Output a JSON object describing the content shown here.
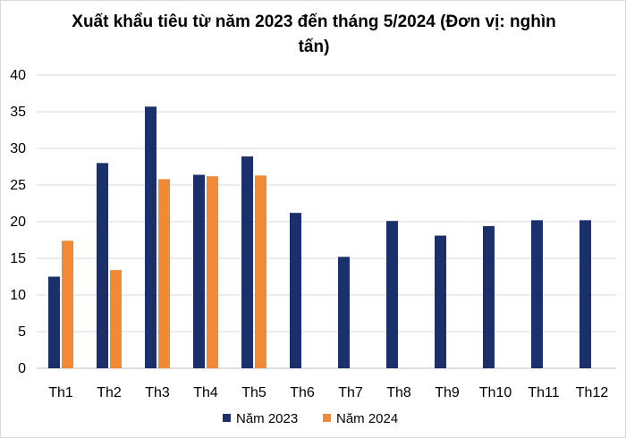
{
  "chart_data": {
    "type": "bar",
    "title": "Xuất khẩu tiêu từ năm 2023 đến tháng 5/2024 (Đơn vị: nghìn tấn)",
    "categories": [
      "Th1",
      "Th2",
      "Th3",
      "Th4",
      "Th5",
      "Th6",
      "Th7",
      "Th8",
      "Th9",
      "Th10",
      "Th11",
      "Th12"
    ],
    "series": [
      {
        "name": "Năm 2023",
        "color": "#1b2f6b",
        "values": [
          12.5,
          28,
          35.7,
          26.4,
          28.9,
          21.2,
          15.2,
          20.1,
          18.1,
          19.4,
          20.2,
          20.2
        ]
      },
      {
        "name": "Năm 2024",
        "color": "#f08a36",
        "values": [
          17.4,
          13.4,
          25.8,
          26.2,
          26.3,
          null,
          null,
          null,
          null,
          null,
          null,
          null
        ]
      }
    ],
    "ylim": [
      0,
      40
    ],
    "yticks": [
      0,
      5,
      10,
      15,
      20,
      25,
      30,
      35,
      40
    ],
    "grid": true,
    "legend": "bottom"
  }
}
